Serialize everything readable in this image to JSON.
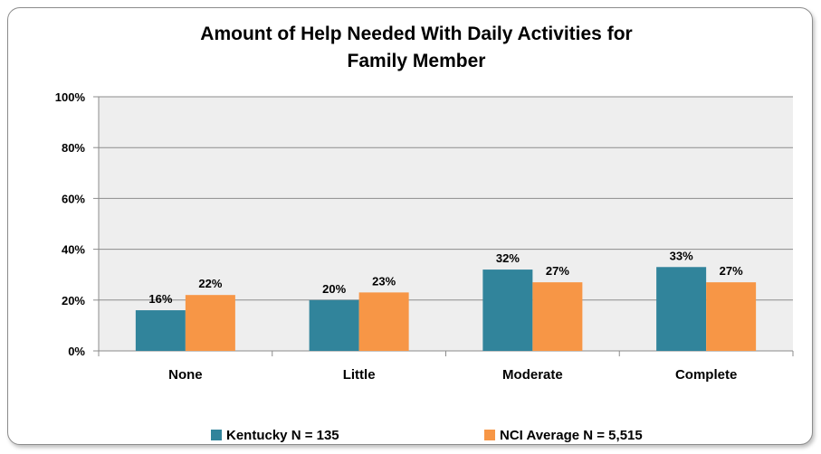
{
  "chart_data": {
    "type": "bar",
    "title": [
      "Amount of Help Needed With Daily Activities for",
      "Family Member"
    ],
    "categories": [
      "None",
      "Little",
      "Moderate",
      "Complete"
    ],
    "series": [
      {
        "name": "Kentucky N = 135",
        "color": "#31849b",
        "values": [
          16,
          20,
          32,
          33
        ],
        "value_labels": [
          "16%",
          "20%",
          "32%",
          "33%"
        ]
      },
      {
        "name": "NCI Average N = 5,515",
        "color": "#f79646",
        "values": [
          22,
          23,
          27,
          27
        ],
        "value_labels": [
          "22%",
          "23%",
          "27%",
          "27%"
        ]
      }
    ],
    "ylim": [
      0,
      100
    ],
    "yticks": [
      0,
      20,
      40,
      60,
      80,
      100
    ],
    "ytick_labels": [
      "0%",
      "20%",
      "40%",
      "60%",
      "80%",
      "100%"
    ],
    "grid": true,
    "plot_background": "#eeeeee",
    "legend_position": "bottom"
  }
}
